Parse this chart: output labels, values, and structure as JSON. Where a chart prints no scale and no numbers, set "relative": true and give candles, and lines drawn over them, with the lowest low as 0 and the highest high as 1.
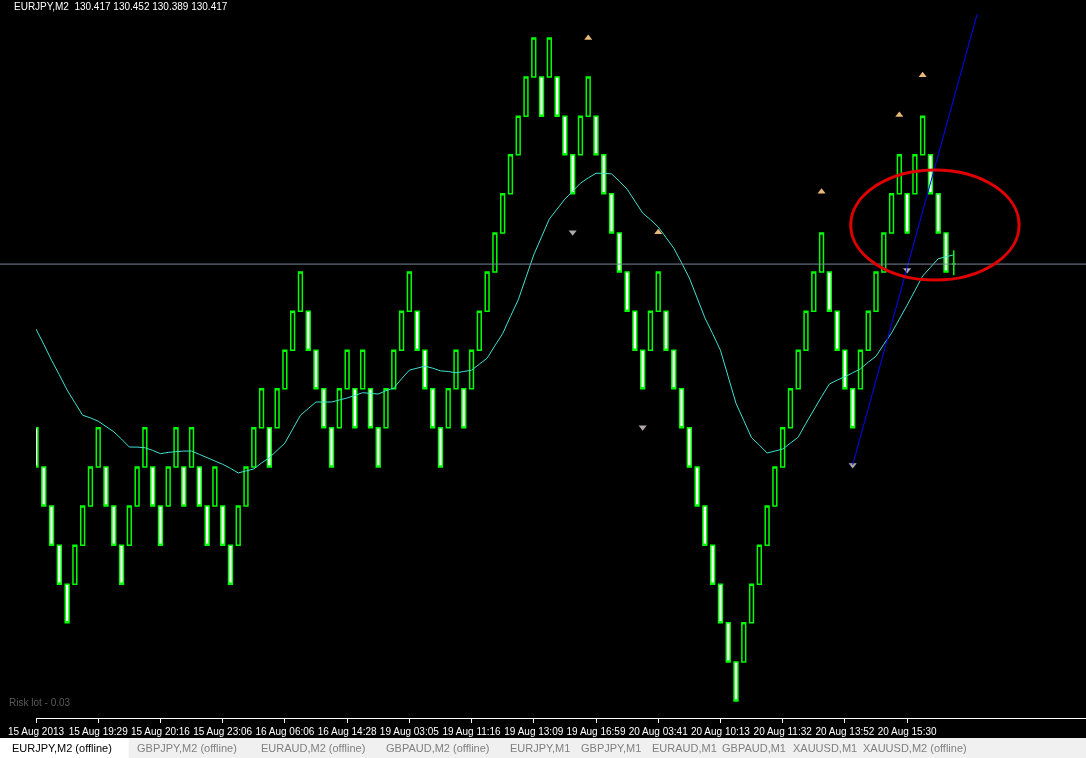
{
  "chart_data": {
    "type": "candlestick",
    "title": "EURJPY,M2  130.417 130.452 130.389 130.417",
    "relative": true,
    "categories": [
      "15 Aug 2013",
      null,
      null,
      null,
      null,
      null,
      null,
      null,
      "15 Aug 19:29",
      null,
      null,
      null,
      null,
      null,
      null,
      null,
      "15 Aug 20:16",
      null,
      null,
      null,
      null,
      null,
      null,
      null,
      "15 Aug 23:06",
      null,
      null,
      null,
      null,
      null,
      null,
      null,
      "16 Aug 06:06",
      null,
      null,
      null,
      null,
      null,
      null,
      null,
      "16 Aug 14:28",
      null,
      null,
      null,
      null,
      null,
      null,
      null,
      "19 Aug 03:05",
      null,
      null,
      null,
      null,
      null,
      null,
      null,
      "19 Aug 11:16",
      null,
      null,
      null,
      null,
      null,
      null,
      null,
      "19 Aug 13:09",
      null,
      null,
      null,
      null,
      null,
      null,
      null,
      "19 Aug 16:59",
      null,
      null,
      null,
      null,
      null,
      null,
      null,
      "20 Aug 03:41",
      null,
      null,
      null,
      null,
      null,
      null,
      null,
      "20 Aug 10:13",
      null,
      null,
      null,
      null,
      null,
      null,
      null,
      "20 Aug 11:32",
      null,
      null,
      null,
      null,
      null,
      null,
      null,
      "20 Aug 13:52",
      null,
      null,
      null,
      null,
      null,
      null,
      null,
      "20 Aug 15:30",
      null,
      null,
      null,
      null,
      null,
      null,
      null,
      null,
      null,
      null,
      null,
      null,
      null,
      null,
      null,
      null,
      null,
      null,
      null,
      null,
      null,
      null,
      null
    ],
    "tick_labels": "x",
    "color": "#00ff00",
    "ohlc": [
      [
        0.412,
        0.412,
        0.353,
        0.353
      ],
      [
        0.353,
        0.353,
        0.294,
        0.294
      ],
      [
        0.294,
        0.294,
        0.235,
        0.235
      ],
      [
        0.235,
        0.235,
        0.176,
        0.176
      ],
      [
        0.176,
        0.176,
        0.118,
        0.118
      ],
      [
        0.176,
        0.235,
        0.176,
        0.235
      ],
      [
        0.235,
        0.294,
        0.235,
        0.294
      ],
      [
        0.294,
        0.353,
        0.294,
        0.353
      ],
      [
        0.353,
        0.412,
        0.353,
        0.412
      ],
      [
        0.353,
        0.353,
        0.294,
        0.294
      ],
      [
        0.294,
        0.294,
        0.235,
        0.235
      ],
      [
        0.235,
        0.235,
        0.176,
        0.176
      ],
      [
        0.235,
        0.294,
        0.235,
        0.294
      ],
      [
        0.294,
        0.353,
        0.294,
        0.353
      ],
      [
        0.353,
        0.412,
        0.353,
        0.412
      ],
      [
        0.353,
        0.353,
        0.294,
        0.294
      ],
      [
        0.294,
        0.294,
        0.235,
        0.235
      ],
      [
        0.294,
        0.353,
        0.294,
        0.353
      ],
      [
        0.353,
        0.412,
        0.353,
        0.412
      ],
      [
        0.353,
        0.353,
        0.294,
        0.294
      ],
      [
        0.353,
        0.412,
        0.353,
        0.412
      ],
      [
        0.353,
        0.353,
        0.294,
        0.294
      ],
      [
        0.294,
        0.294,
        0.235,
        0.235
      ],
      [
        0.294,
        0.353,
        0.294,
        0.353
      ],
      [
        0.294,
        0.294,
        0.235,
        0.235
      ],
      [
        0.235,
        0.235,
        0.176,
        0.176
      ],
      [
        0.235,
        0.294,
        0.235,
        0.294
      ],
      [
        0.294,
        0.353,
        0.294,
        0.353
      ],
      [
        0.353,
        0.412,
        0.353,
        0.412
      ],
      [
        0.412,
        0.471,
        0.412,
        0.471
      ],
      [
        0.412,
        0.412,
        0.353,
        0.353
      ],
      [
        0.412,
        0.471,
        0.412,
        0.471
      ],
      [
        0.471,
        0.529,
        0.471,
        0.529
      ],
      [
        0.529,
        0.588,
        0.529,
        0.588
      ],
      [
        0.588,
        0.647,
        0.588,
        0.647
      ],
      [
        0.588,
        0.588,
        0.529,
        0.529
      ],
      [
        0.529,
        0.529,
        0.471,
        0.471
      ],
      [
        0.471,
        0.471,
        0.412,
        0.412
      ],
      [
        0.412,
        0.412,
        0.353,
        0.353
      ],
      [
        0.412,
        0.471,
        0.412,
        0.471
      ],
      [
        0.471,
        0.529,
        0.471,
        0.529
      ],
      [
        0.471,
        0.471,
        0.412,
        0.412
      ],
      [
        0.471,
        0.529,
        0.471,
        0.529
      ],
      [
        0.471,
        0.471,
        0.412,
        0.412
      ],
      [
        0.412,
        0.412,
        0.353,
        0.353
      ],
      [
        0.412,
        0.471,
        0.412,
        0.471
      ],
      [
        0.471,
        0.529,
        0.471,
        0.529
      ],
      [
        0.529,
        0.588,
        0.529,
        0.588
      ],
      [
        0.588,
        0.647,
        0.588,
        0.647
      ],
      [
        0.588,
        0.588,
        0.529,
        0.529
      ],
      [
        0.529,
        0.529,
        0.471,
        0.471
      ],
      [
        0.471,
        0.471,
        0.412,
        0.412
      ],
      [
        0.412,
        0.412,
        0.353,
        0.353
      ],
      [
        0.412,
        0.471,
        0.412,
        0.471
      ],
      [
        0.471,
        0.529,
        0.471,
        0.529
      ],
      [
        0.471,
        0.471,
        0.412,
        0.412
      ],
      [
        0.471,
        0.529,
        0.471,
        0.529
      ],
      [
        0.529,
        0.588,
        0.529,
        0.588
      ],
      [
        0.588,
        0.647,
        0.588,
        0.647
      ],
      [
        0.647,
        0.706,
        0.647,
        0.706
      ],
      [
        0.706,
        0.765,
        0.706,
        0.765
      ],
      [
        0.765,
        0.824,
        0.765,
        0.824
      ],
      [
        0.824,
        0.882,
        0.824,
        0.882
      ],
      [
        0.882,
        0.941,
        0.882,
        0.941
      ],
      [
        0.941,
        1,
        0.941,
        1
      ],
      [
        0.941,
        0.941,
        0.882,
        0.882
      ],
      [
        0.941,
        1,
        0.941,
        1
      ],
      [
        0.941,
        0.941,
        0.882,
        0.882
      ],
      [
        0.882,
        0.882,
        0.824,
        0.824
      ],
      [
        0.824,
        0.824,
        0.765,
        0.765
      ],
      [
        0.824,
        0.882,
        0.824,
        0.882
      ],
      [
        0.882,
        0.941,
        0.882,
        0.941
      ],
      [
        0.882,
        0.882,
        0.824,
        0.824
      ],
      [
        0.824,
        0.824,
        0.765,
        0.765
      ],
      [
        0.765,
        0.765,
        0.706,
        0.706
      ],
      [
        0.706,
        0.706,
        0.647,
        0.647
      ],
      [
        0.647,
        0.647,
        0.588,
        0.588
      ],
      [
        0.588,
        0.588,
        0.529,
        0.529
      ],
      [
        0.529,
        0.529,
        0.471,
        0.471
      ],
      [
        0.529,
        0.588,
        0.529,
        0.588
      ],
      [
        0.588,
        0.647,
        0.588,
        0.647
      ],
      [
        0.588,
        0.588,
        0.529,
        0.529
      ],
      [
        0.529,
        0.529,
        0.471,
        0.471
      ],
      [
        0.471,
        0.471,
        0.412,
        0.412
      ],
      [
        0.412,
        0.412,
        0.353,
        0.353
      ],
      [
        0.353,
        0.353,
        0.294,
        0.294
      ],
      [
        0.294,
        0.294,
        0.235,
        0.235
      ],
      [
        0.235,
        0.235,
        0.176,
        0.176
      ],
      [
        0.176,
        0.176,
        0.118,
        0.118
      ],
      [
        0.118,
        0.118,
        0.059,
        0.059
      ],
      [
        0.059,
        0.059,
        0,
        0
      ],
      [
        0.059,
        0.118,
        0.059,
        0.118
      ],
      [
        0.118,
        0.176,
        0.118,
        0.176
      ],
      [
        0.176,
        0.235,
        0.176,
        0.235
      ],
      [
        0.235,
        0.294,
        0.235,
        0.294
      ],
      [
        0.294,
        0.353,
        0.294,
        0.353
      ],
      [
        0.353,
        0.412,
        0.353,
        0.412
      ],
      [
        0.412,
        0.471,
        0.412,
        0.471
      ],
      [
        0.471,
        0.529,
        0.471,
        0.529
      ],
      [
        0.529,
        0.588,
        0.529,
        0.588
      ],
      [
        0.588,
        0.647,
        0.588,
        0.647
      ],
      [
        0.647,
        0.706,
        0.647,
        0.706
      ],
      [
        0.647,
        0.647,
        0.588,
        0.588
      ],
      [
        0.588,
        0.588,
        0.529,
        0.529
      ],
      [
        0.529,
        0.529,
        0.471,
        0.471
      ],
      [
        0.471,
        0.471,
        0.412,
        0.412
      ],
      [
        0.471,
        0.529,
        0.471,
        0.529
      ],
      [
        0.529,
        0.588,
        0.529,
        0.588
      ],
      [
        0.588,
        0.647,
        0.588,
        0.647
      ],
      [
        0.647,
        0.706,
        0.647,
        0.706
      ],
      [
        0.706,
        0.765,
        0.706,
        0.765
      ],
      [
        0.765,
        0.824,
        0.765,
        0.824
      ],
      [
        0.765,
        0.765,
        0.706,
        0.706
      ],
      [
        0.765,
        0.824,
        0.765,
        0.824
      ],
      [
        0.824,
        0.882,
        0.824,
        0.882
      ],
      [
        0.824,
        0.824,
        0.765,
        0.765
      ],
      [
        0.765,
        0.765,
        0.706,
        0.706
      ],
      [
        0.706,
        0.706,
        0.647,
        0.647
      ],
      [
        0.659,
        0.68,
        0.642,
        0.659
      ],
      null,
      null,
      null,
      null,
      null,
      null,
      null,
      null,
      null,
      null,
      null,
      null,
      null,
      null,
      null,
      null,
      null
    ],
    "colors": [
      "#ffffff",
      "#ffffff",
      "#ffffff",
      "#ffffff",
      "#ffffff",
      "#000000",
      "#000000",
      "#000000",
      "#000000",
      "#ffffff",
      "#ffffff",
      "#ffffff",
      "#000000",
      "#000000",
      "#000000",
      "#ffffff",
      "#ffffff",
      "#000000",
      "#000000",
      "#ffffff",
      "#000000",
      "#ffffff",
      "#ffffff",
      "#000000",
      "#ffffff",
      "#ffffff",
      "#000000",
      "#000000",
      "#000000",
      "#000000",
      "#ffffff",
      "#000000",
      "#000000",
      "#000000",
      "#000000",
      "#ffffff",
      "#ffffff",
      "#ffffff",
      "#ffffff",
      "#000000",
      "#000000",
      "#ffffff",
      "#000000",
      "#ffffff",
      "#ffffff",
      "#000000",
      "#000000",
      "#000000",
      "#000000",
      "#ffffff",
      "#ffffff",
      "#ffffff",
      "#ffffff",
      "#000000",
      "#000000",
      "#ffffff",
      "#000000",
      "#000000",
      "#000000",
      "#000000",
      "#000000",
      "#000000",
      "#000000",
      "#000000",
      "#000000",
      "#ffffff",
      "#000000",
      "#ffffff",
      "#ffffff",
      "#ffffff",
      "#000000",
      "#000000",
      "#ffffff",
      "#ffffff",
      "#ffffff",
      "#ffffff",
      "#ffffff",
      "#ffffff",
      "#ffffff",
      "#000000",
      "#000000",
      "#ffffff",
      "#ffffff",
      "#ffffff",
      "#ffffff",
      "#ffffff",
      "#ffffff",
      "#ffffff",
      "#ffffff",
      "#ffffff",
      "#ffffff",
      "#000000",
      "#000000",
      "#000000",
      "#000000",
      "#000000",
      "#000000",
      "#000000",
      "#000000",
      "#000000",
      "#000000",
      "#000000",
      "#ffffff",
      "#ffffff",
      "#ffffff",
      "#ffffff",
      "#000000",
      "#000000",
      "#000000",
      "#000000",
      "#000000",
      "#000000",
      "#ffffff",
      "#000000",
      "#000000",
      "#ffffff",
      "#ffffff",
      "#ffffff",
      "#00ff00",
      null,
      null,
      null,
      null,
      null,
      null,
      null,
      null,
      null,
      null,
      null,
      null,
      null,
      null,
      null,
      null,
      null
    ],
    "series": [
      {
        "type": "line",
        "color": "#40e0d0",
        "line_style": "solid",
        "values": [
          0.561,
          0.538,
          0.514,
          0.492,
          0.469,
          0.45,
          0.431,
          0.427,
          0.422,
          0.414,
          0.406,
          0.395,
          0.383,
          0.383,
          0.382,
          0.378,
          0.373,
          0.375,
          0.376,
          0.377,
          0.377,
          0.372,
          0.367,
          0.362,
          0.357,
          0.351,
          0.344,
          0.347,
          0.35,
          0.359,
          0.367,
          0.378,
          0.389,
          0.41,
          0.431,
          0.441,
          0.451,
          0.451,
          0.451,
          0.454,
          0.457,
          0.461,
          0.465,
          0.464,
          0.463,
          0.468,
          0.472,
          0.486,
          0.499,
          0.502,
          0.505,
          0.502,
          0.498,
          0.497,
          0.495,
          0.497,
          0.499,
          0.508,
          0.517,
          0.536,
          0.554,
          0.58,
          0.605,
          0.639,
          0.673,
          0.7,
          0.727,
          0.742,
          0.757,
          0.769,
          0.781,
          0.789,
          0.796,
          0.796,
          0.795,
          0.784,
          0.772,
          0.754,
          0.736,
          0.726,
          0.715,
          0.699,
          0.683,
          0.661,
          0.638,
          0.608,
          0.578,
          0.554,
          0.529,
          0.489,
          0.449,
          0.423,
          0.397,
          0.386,
          0.374,
          0.377,
          0.38,
          0.389,
          0.398,
          0.419,
          0.439,
          0.459,
          0.478,
          0.484,
          0.489,
          0.495,
          0.501,
          0.511,
          0.52,
          0.538,
          0.555,
          0.576,
          0.597,
          0.619,
          0.641,
          0.654,
          0.667,
          0.67,
          0.673,
          null,
          null,
          null,
          null,
          null,
          null,
          null,
          null,
          null,
          null,
          null,
          null,
          null,
          null,
          null,
          null,
          null
        ]
      },
      {
        "type": "scatter",
        "color": "#e8b878",
        "marker": "triangle",
        "values": [
          null,
          null,
          null,
          null,
          null,
          null,
          null,
          null,
          null,
          null,
          null,
          null,
          null,
          null,
          null,
          null,
          null,
          null,
          null,
          null,
          null,
          null,
          null,
          null,
          null,
          null,
          null,
          null,
          null,
          null,
          null,
          null,
          null,
          null,
          null,
          null,
          null,
          null,
          null,
          null,
          null,
          null,
          null,
          null,
          null,
          null,
          null,
          null,
          null,
          null,
          null,
          null,
          null,
          null,
          null,
          null,
          null,
          null,
          null,
          null,
          null,
          null,
          null,
          null,
          null,
          null,
          null,
          null,
          null,
          null,
          null,
          1,
          null,
          null,
          null,
          null,
          null,
          null,
          null,
          null,
          0.707,
          null,
          null,
          null,
          null,
          null,
          null,
          null,
          null,
          null,
          null,
          null,
          null,
          null,
          null,
          null,
          null,
          null,
          null,
          null,
          null,
          0.768,
          null,
          null,
          null,
          null,
          null,
          null,
          null,
          null,
          null,
          0.884,
          null,
          null,
          0.944,
          null,
          null,
          null,
          null,
          null,
          null,
          null,
          null,
          null,
          null,
          null,
          null,
          null,
          null,
          null,
          null,
          null,
          null,
          null,
          null,
          null
        ]
      },
      {
        "type": "scatter",
        "color": "#b0a8a8",
        "marker": "triangle-down",
        "values": [
          null,
          null,
          null,
          null,
          null,
          null,
          null,
          null,
          null,
          null,
          null,
          null,
          null,
          null,
          null,
          null,
          null,
          null,
          null,
          null,
          null,
          null,
          null,
          null,
          null,
          null,
          null,
          null,
          null,
          null,
          null,
          null,
          null,
          null,
          null,
          null,
          null,
          null,
          null,
          null,
          null,
          null,
          null,
          null,
          null,
          null,
          null,
          null,
          null,
          null,
          null,
          null,
          null,
          null,
          null,
          null,
          null,
          null,
          null,
          null,
          null,
          null,
          null,
          null,
          null,
          null,
          null,
          null,
          null,
          0.707,
          null,
          null,
          null,
          null,
          null,
          null,
          null,
          null,
          0.413,
          null,
          null,
          null,
          null,
          null,
          null,
          null,
          null,
          null,
          null,
          null,
          null,
          null,
          null,
          null,
          null,
          null,
          null,
          null,
          null,
          null,
          null,
          null,
          null,
          null,
          null,
          0.356,
          null,
          null,
          null,
          null,
          null,
          null,
          0.65,
          null,
          null,
          null,
          null,
          null,
          null,
          null,
          null,
          null,
          null,
          null,
          null,
          null,
          null,
          null,
          null,
          null,
          null,
          null,
          null,
          null,
          null,
          null
        ]
      },
      {
        "type": "line",
        "color": "#0000ff",
        "line_style": "solid",
        "values": [
          null,
          null,
          null,
          null,
          null,
          null,
          null,
          null,
          null,
          null,
          null,
          null,
          null,
          null,
          null,
          null,
          null,
          null,
          null,
          null,
          null,
          null,
          null,
          null,
          null,
          null,
          null,
          null,
          null,
          null,
          null,
          null,
          null,
          null,
          null,
          null,
          null,
          null,
          null,
          null,
          null,
          null,
          null,
          null,
          null,
          null,
          null,
          null,
          null,
          null,
          null,
          null,
          null,
          null,
          null,
          null,
          null,
          null,
          null,
          null,
          null,
          null,
          null,
          null,
          null,
          null,
          null,
          null,
          null,
          null,
          null,
          null,
          null,
          null,
          null,
          null,
          null,
          null,
          null,
          null,
          null,
          null,
          null,
          null,
          null,
          null,
          null,
          null,
          null,
          null,
          null,
          null,
          null,
          null,
          null,
          null,
          null,
          null,
          null,
          null,
          null,
          null,
          null,
          null,
          null,
          0.356,
          null,
          null,
          null,
          null,
          null,
          null,
          null,
          null,
          null,
          null,
          null,
          null,
          null,
          null,
          null,
          1.036,
          null,
          null,
          null,
          null,
          null,
          null,
          null,
          null,
          null,
          null,
          null,
          null,
          null,
          null
        ]
      }
    ],
    "ref_lines": [
      {
        "axis": "y",
        "value": 0.659,
        "color": "#778899"
      }
    ],
    "annotations": [
      "Risk lot - 0.03",
      "EURJPY,M2 (offline)",
      "GBPJPY,M2 (offline)",
      "EURAUD,M2 (offline)",
      "GBPAUD,M2 (offline)",
      "EURJPY,M1",
      "GBPJPY,M1",
      "EURAUD,M1",
      "GBPAUD,M1",
      "XAUUSD,M1",
      "XAUUSD,M2 (offline)"
    ]
  }
}
